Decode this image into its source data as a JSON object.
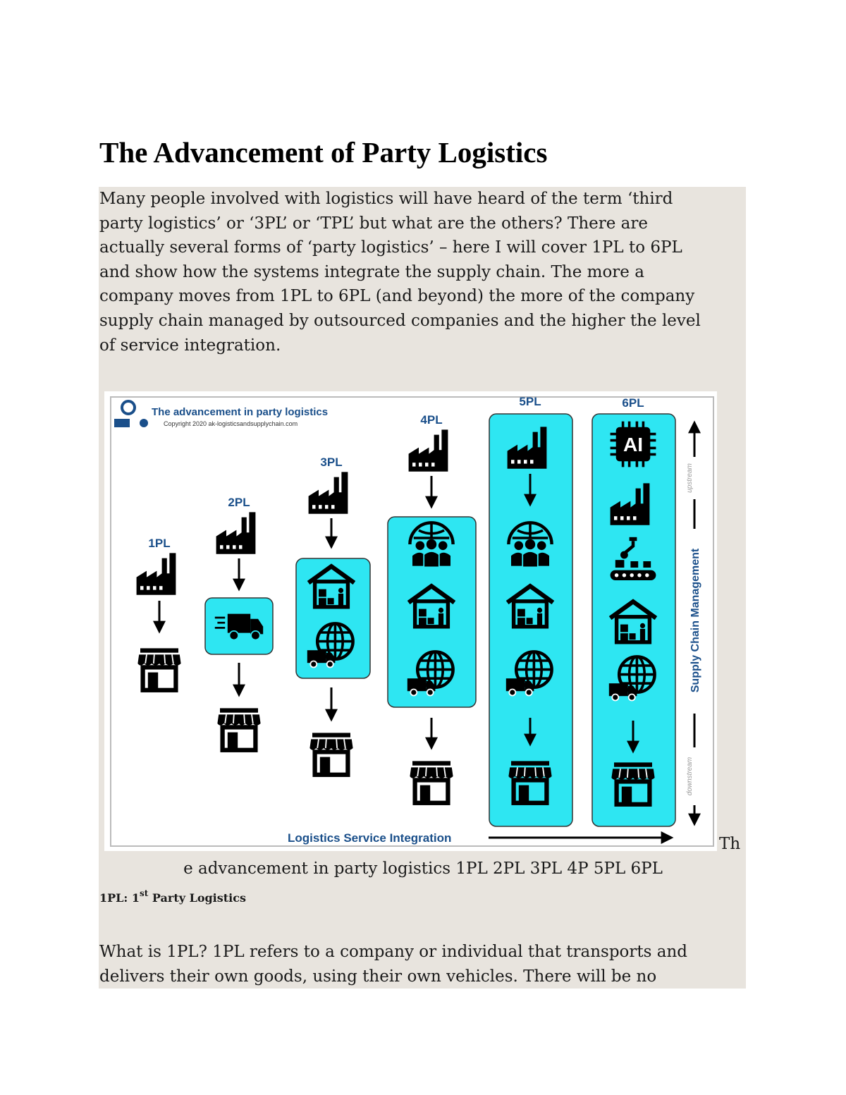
{
  "title": "The Advancement of Party Logistics",
  "intro_lines": [
    "Many people involved with logistics will have heard of the term ‘third",
    "party logistics’ or ‘3PL’ or ‘TPL’ but what are the others? There are",
    "actually several forms of ‘party logistics’ – here I will cover 1PL to 6PL",
    "and show how the systems integrate the supply chain. The more a",
    "company moves from 1PL to 6PL (and beyond) the more of the company",
    "supply chain managed by outsourced companies and the higher the level",
    "of service integration."
  ],
  "figure": {
    "title": "The advancement in party logistics",
    "copyright": "Copyright 2020 ak-logisticsandsupplychain.com",
    "levels": [
      "1PL",
      "2PL",
      "3PL",
      "4PL",
      "5PL",
      "6PL"
    ],
    "ai_chip": "AI",
    "vertical_axis": "Supply Chain Management",
    "upstream": "upstream",
    "downstream": "downstream",
    "horizontal_axis": "Logistics Service Integration"
  },
  "caption_start": "Th",
  "caption": "e advancement in party logistics 1PL 2PL 3PL 4P 5PL 6PL",
  "section_heading": {
    "prefix": "1PL: 1",
    "superscript": "st",
    "suffix": " Party Logistics"
  },
  "section_lines": [
    "What is 1PL? 1PL refers to a company or individual that transports and",
    "delivers their own goods, using their own vehicles. There will be no"
  ]
}
